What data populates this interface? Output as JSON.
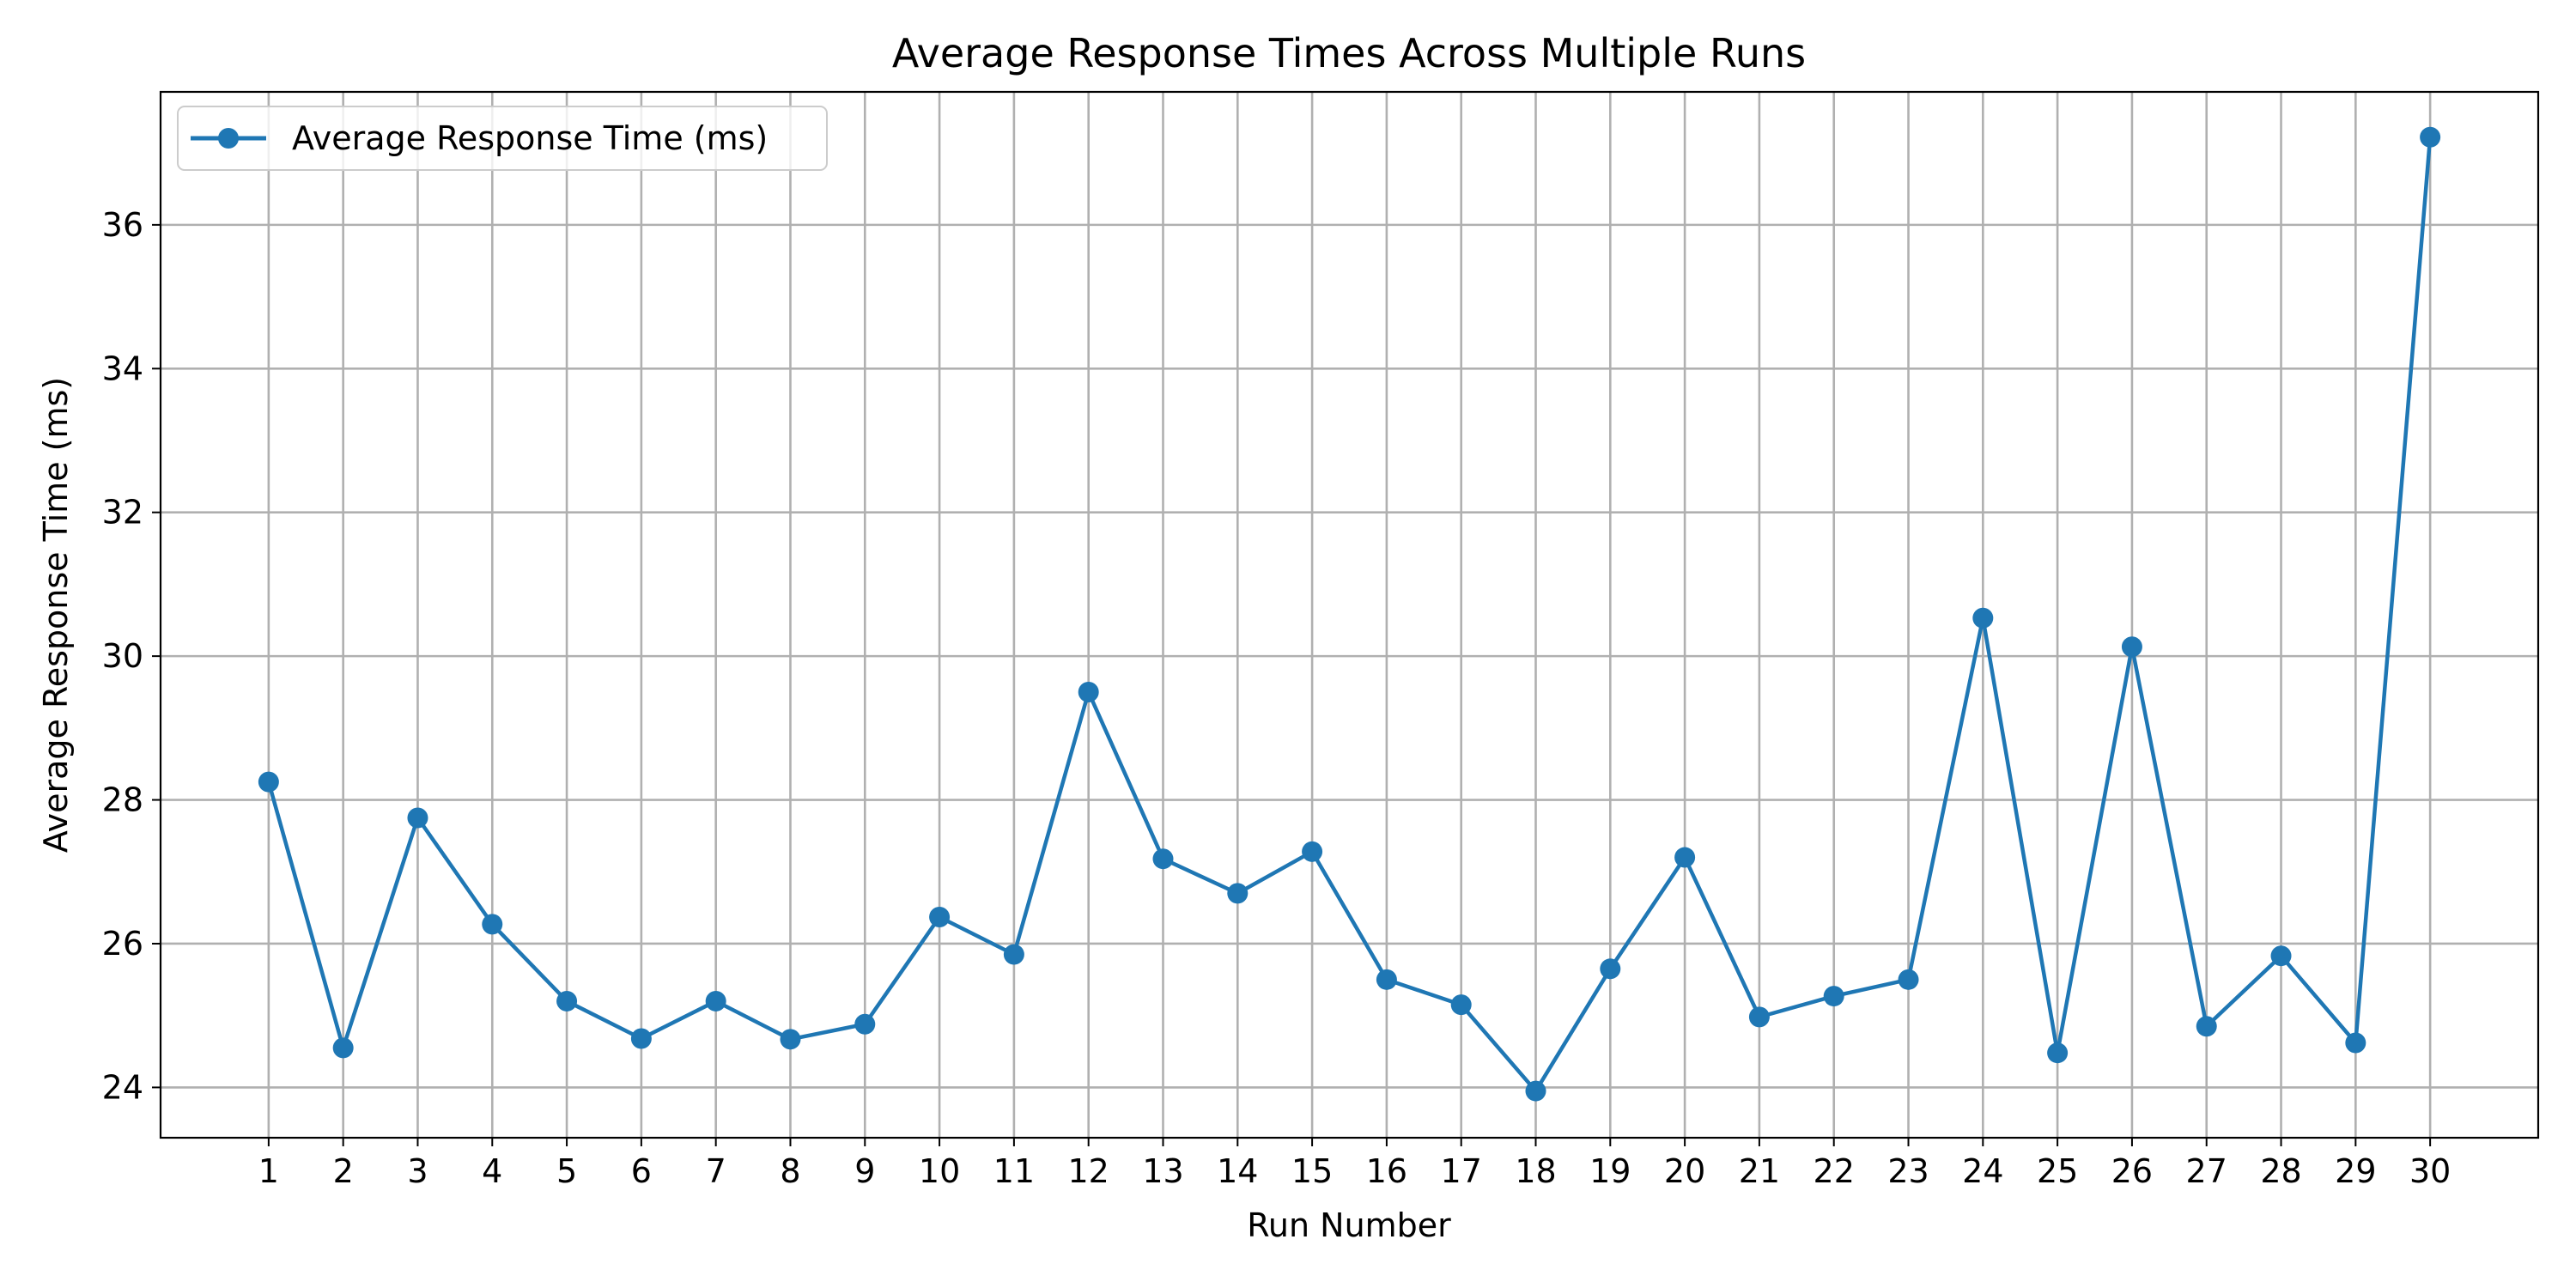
{
  "chart_data": {
    "type": "line",
    "title": "Average Response Times Across Multiple Runs",
    "xlabel": "Run Number",
    "ylabel": "Average Response Time (ms)",
    "x": [
      1,
      2,
      3,
      4,
      5,
      6,
      7,
      8,
      9,
      10,
      11,
      12,
      13,
      14,
      15,
      16,
      17,
      18,
      19,
      20,
      21,
      22,
      23,
      24,
      25,
      26,
      27,
      28,
      29,
      30
    ],
    "x_ticks": [
      "1",
      "2",
      "3",
      "4",
      "5",
      "6",
      "7",
      "8",
      "9",
      "10",
      "11",
      "12",
      "13",
      "14",
      "15",
      "16",
      "17",
      "18",
      "19",
      "20",
      "21",
      "22",
      "23",
      "24",
      "25",
      "26",
      "27",
      "28",
      "29",
      "30"
    ],
    "y_ticks": [
      "24",
      "26",
      "28",
      "30",
      "32",
      "34",
      "36"
    ],
    "xlim": [
      -0.45,
      31.45
    ],
    "ylim": [
      23.3,
      37.85
    ],
    "grid": true,
    "legend_position": "top-left",
    "series": [
      {
        "name": "Average Response Time (ms)",
        "color": "#1f77b4",
        "marker": "circle",
        "values": [
          28.25,
          24.55,
          27.75,
          26.27,
          25.2,
          24.68,
          25.2,
          24.67,
          24.88,
          26.37,
          25.85,
          29.5,
          27.18,
          26.7,
          27.28,
          25.5,
          25.15,
          23.95,
          25.65,
          27.2,
          24.98,
          25.27,
          25.5,
          30.53,
          24.48,
          30.13,
          24.85,
          25.83,
          24.62,
          37.22
        ]
      }
    ]
  }
}
